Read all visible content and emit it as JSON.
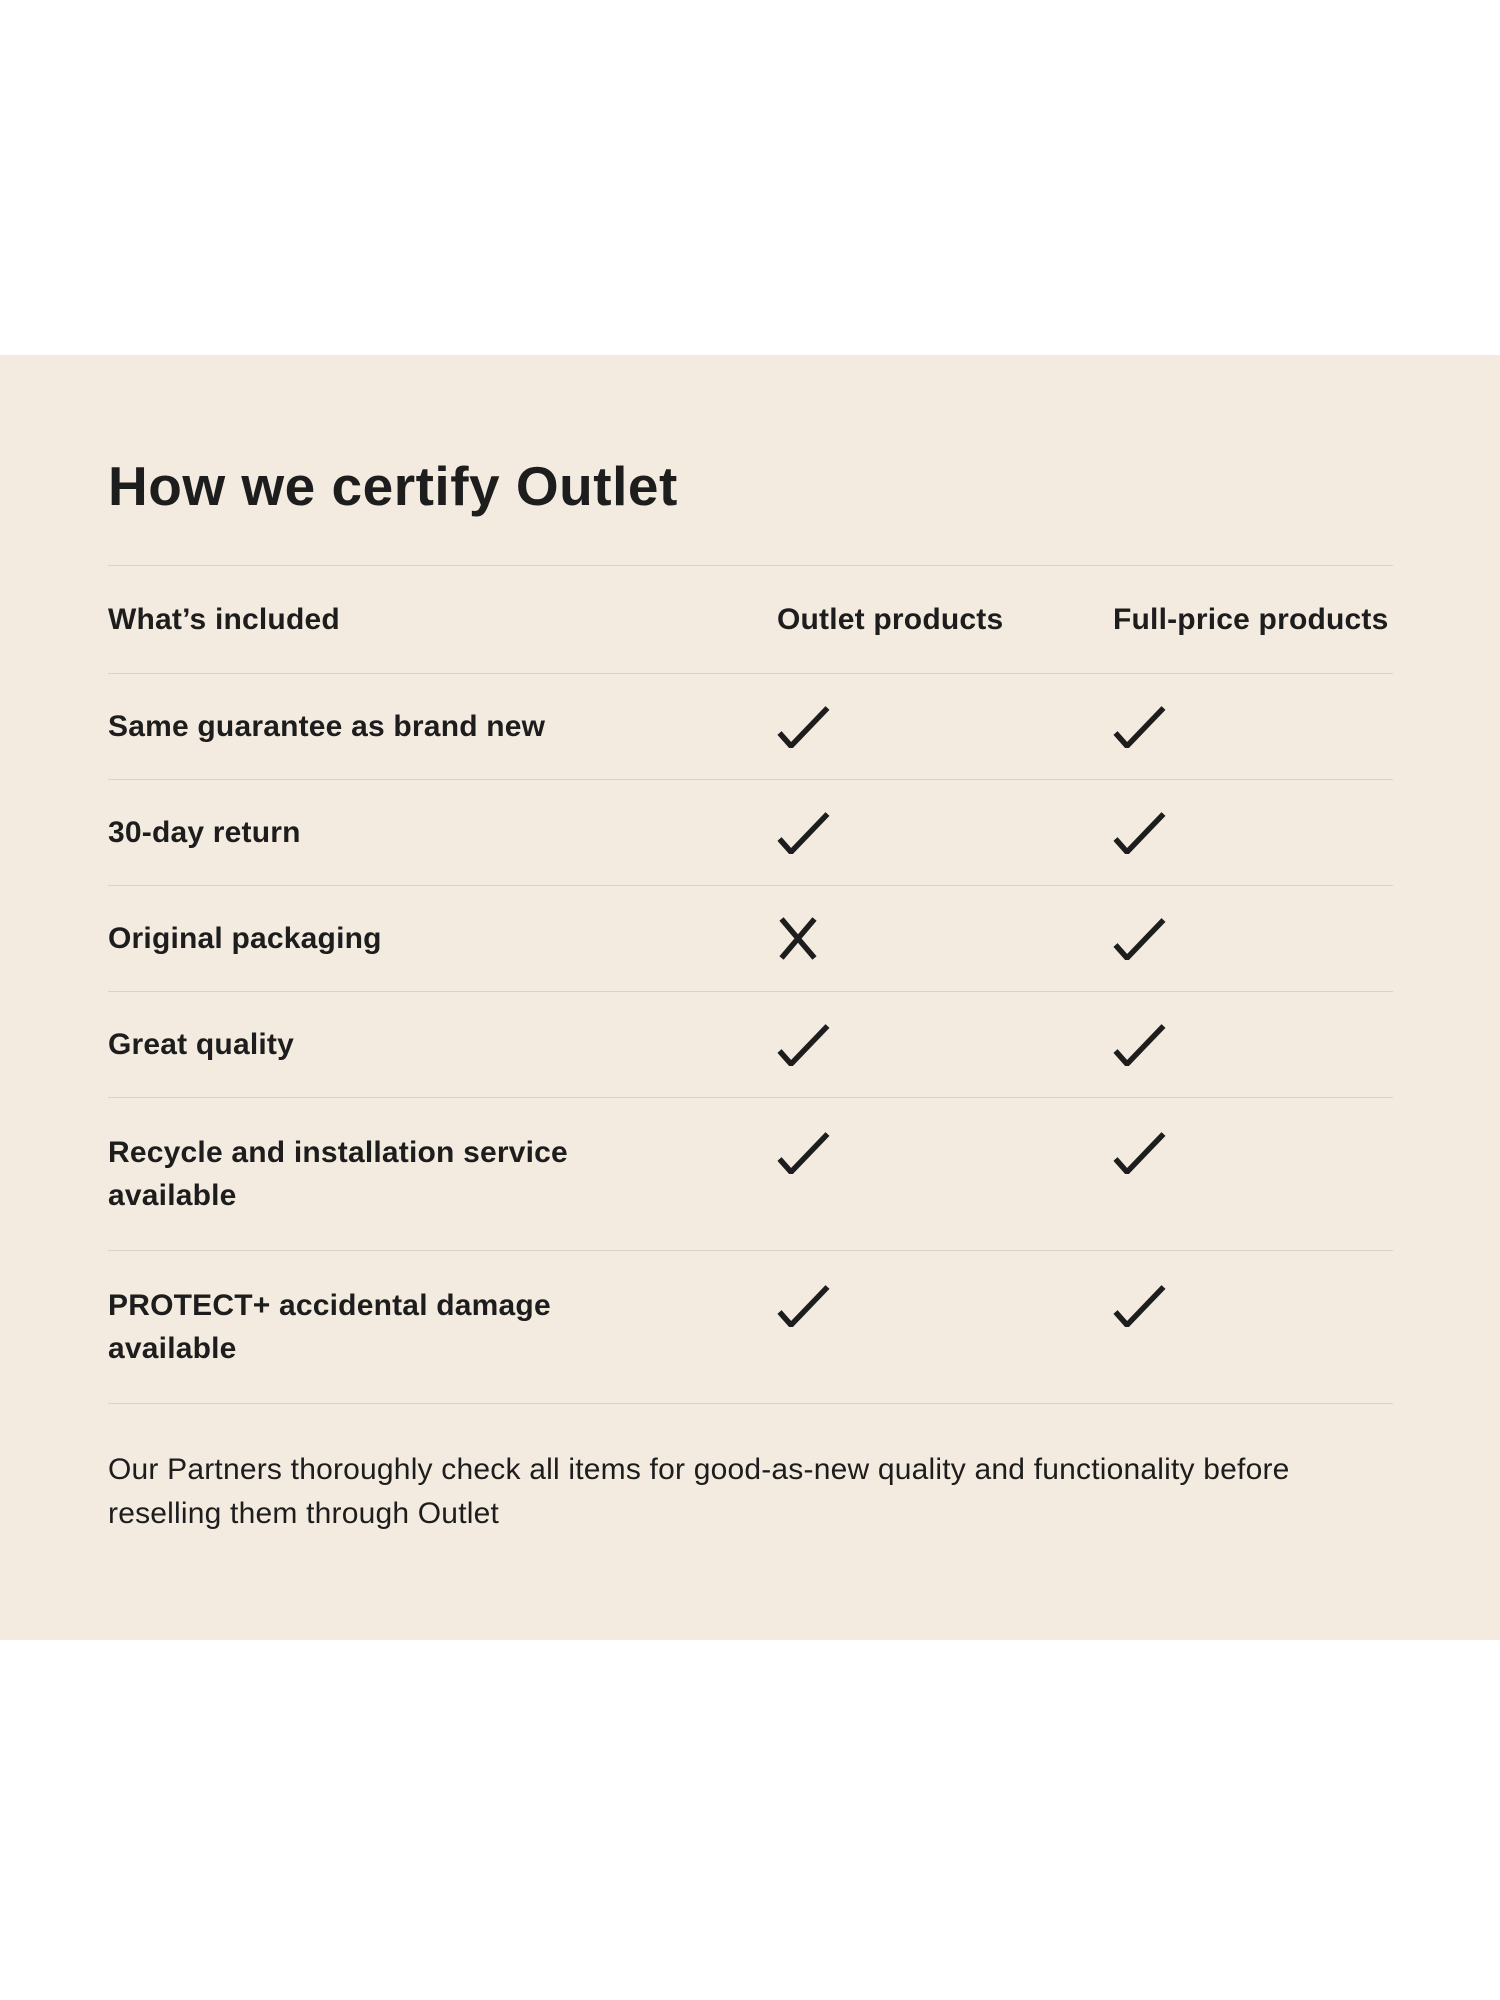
{
  "colors": {
    "page_background": "#ffffff",
    "section_background": "#f3eae0",
    "divider": "#d9d2c8",
    "text": "#1d1d1d"
  },
  "section": {
    "title": "How we certify Outlet",
    "table": {
      "headers": [
        "What’s included",
        "Outlet products",
        "Full-price products"
      ],
      "rows": [
        {
          "label_lines": [
            "Same guarantee as brand new"
          ],
          "outlet": "check",
          "full_price": "check"
        },
        {
          "label_lines": [
            "30-day return"
          ],
          "outlet": "check",
          "full_price": "check"
        },
        {
          "label_lines": [
            "Original packaging"
          ],
          "outlet": "cross",
          "full_price": "check"
        },
        {
          "label_lines": [
            "Great quality"
          ],
          "outlet": "check",
          "full_price": "check"
        },
        {
          "label_lines": [
            "Recycle and installation service",
            "available"
          ],
          "outlet": "check",
          "full_price": "check"
        },
        {
          "label_lines": [
            "PROTECT+ accidental damage",
            "available"
          ],
          "outlet": "check",
          "full_price": "check"
        }
      ]
    },
    "footnote_lines": [
      "Our Partners thoroughly check all items for good-as-new quality and functionality before",
      "reselling them through Outlet"
    ]
  },
  "icons": {
    "check": "check-icon",
    "cross": "cross-icon"
  }
}
